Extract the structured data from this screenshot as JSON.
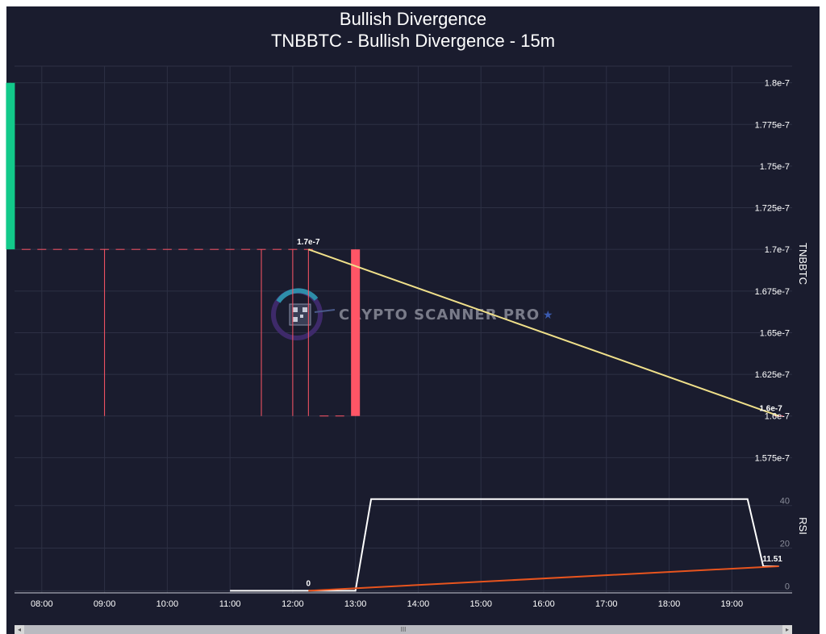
{
  "chart_data": {
    "type": "candlestick",
    "title": "Bullish Divergence",
    "subtitle": "TNBBTC - Bullish Divergence - 15m",
    "watermark": "CRYPTO SCANNER PRO",
    "x_tick_labels": [
      "08:00",
      "09:00",
      "10:00",
      "11:00",
      "12:00",
      "13:00",
      "14:00",
      "15:00",
      "16:00",
      "17:00",
      "18:00",
      "19:00"
    ],
    "x_range": [
      "07:37",
      "19:53"
    ],
    "price_panel": {
      "ylabel": "TNBBTC",
      "ylim": [
        1.565e-07,
        1.81e-07
      ],
      "y_ticks": [
        1.575e-07,
        1.6e-07,
        1.625e-07,
        1.65e-07,
        1.675e-07,
        1.7e-07,
        1.725e-07,
        1.75e-07,
        1.775e-07,
        1.8e-07
      ],
      "y_tick_labels": [
        "1.575e-7",
        "1.6e-7",
        "1.625e-7",
        "1.65e-7",
        "1.675e-7",
        "1.7e-7",
        "1.725e-7",
        "1.75e-7",
        "1.775e-7",
        "1.8e-7"
      ],
      "grid": true,
      "candles": [
        {
          "time": "07:30",
          "open": 1.7e-07,
          "high": 1.8e-07,
          "low": 1.7e-07,
          "close": 1.8e-07
        },
        {
          "time": "07:45",
          "open": 1.7e-07,
          "high": 1.7e-07,
          "low": 1.7e-07,
          "close": 1.7e-07
        },
        {
          "time": "08:00",
          "open": 1.7e-07,
          "high": 1.7e-07,
          "low": 1.7e-07,
          "close": 1.7e-07
        },
        {
          "time": "08:15",
          "open": 1.7e-07,
          "high": 1.7e-07,
          "low": 1.7e-07,
          "close": 1.7e-07
        },
        {
          "time": "08:30",
          "open": 1.7e-07,
          "high": 1.7e-07,
          "low": 1.7e-07,
          "close": 1.7e-07
        },
        {
          "time": "08:45",
          "open": 1.7e-07,
          "high": 1.7e-07,
          "low": 1.7e-07,
          "close": 1.7e-07
        },
        {
          "time": "09:00",
          "open": 1.7e-07,
          "high": 1.7e-07,
          "low": 1.6e-07,
          "close": 1.7e-07
        },
        {
          "time": "09:15",
          "open": 1.7e-07,
          "high": 1.7e-07,
          "low": 1.7e-07,
          "close": 1.7e-07
        },
        {
          "time": "09:30",
          "open": 1.7e-07,
          "high": 1.7e-07,
          "low": 1.7e-07,
          "close": 1.7e-07
        },
        {
          "time": "09:45",
          "open": 1.7e-07,
          "high": 1.7e-07,
          "low": 1.7e-07,
          "close": 1.7e-07
        },
        {
          "time": "10:00",
          "open": 1.7e-07,
          "high": 1.7e-07,
          "low": 1.7e-07,
          "close": 1.7e-07
        },
        {
          "time": "10:15",
          "open": 1.7e-07,
          "high": 1.7e-07,
          "low": 1.7e-07,
          "close": 1.7e-07
        },
        {
          "time": "10:30",
          "open": 1.7e-07,
          "high": 1.7e-07,
          "low": 1.7e-07,
          "close": 1.7e-07
        },
        {
          "time": "10:45",
          "open": 1.7e-07,
          "high": 1.7e-07,
          "low": 1.7e-07,
          "close": 1.7e-07
        },
        {
          "time": "11:00",
          "open": 1.7e-07,
          "high": 1.7e-07,
          "low": 1.7e-07,
          "close": 1.7e-07
        },
        {
          "time": "11:15",
          "open": 1.7e-07,
          "high": 1.7e-07,
          "low": 1.7e-07,
          "close": 1.7e-07
        },
        {
          "time": "11:30",
          "open": 1.7e-07,
          "high": 1.7e-07,
          "low": 1.6e-07,
          "close": 1.7e-07
        },
        {
          "time": "11:45",
          "open": 1.7e-07,
          "high": 1.7e-07,
          "low": 1.7e-07,
          "close": 1.7e-07
        },
        {
          "time": "12:00",
          "open": 1.7e-07,
          "high": 1.7e-07,
          "low": 1.6e-07,
          "close": 1.7e-07
        },
        {
          "time": "12:15",
          "open": 1.7e-07,
          "high": 1.7e-07,
          "low": 1.6e-07,
          "close": 1.7e-07
        },
        {
          "time": "12:30",
          "open": 1.6e-07,
          "high": 1.6e-07,
          "low": 1.6e-07,
          "close": 1.6e-07
        },
        {
          "time": "12:45",
          "open": 1.6e-07,
          "high": 1.6e-07,
          "low": 1.6e-07,
          "close": 1.6e-07
        },
        {
          "time": "13:00",
          "open": 1.7e-07,
          "high": 1.7e-07,
          "low": 1.6e-07,
          "close": 1.6e-07
        },
        {
          "time": "19:45",
          "open": 1.6e-07,
          "high": 1.6e-07,
          "low": 1.6e-07,
          "close": 1.6e-07
        }
      ],
      "divergence_line": {
        "from": {
          "time": "12:15",
          "value": 1.7e-07
        },
        "to": {
          "time": "19:45",
          "value": 1.6e-07
        },
        "color": "#f0e08a"
      },
      "point_labels": [
        {
          "time": "12:15",
          "value": 1.7e-07,
          "text": "1.7e-7"
        },
        {
          "time": "19:45",
          "value": 1.6e-07,
          "text": "1.6e-7"
        }
      ],
      "up_color": "#12c98a",
      "down_color": "#ff5566"
    },
    "rsi_panel": {
      "ylabel": "RSI",
      "ylim": [
        -1,
        52
      ],
      "y_ticks": [
        0,
        20,
        40
      ],
      "y_tick_labels": [
        "0",
        "20",
        "40"
      ],
      "rsi_series": {
        "name": "RSI",
        "color": "#ffffff",
        "points": [
          {
            "time": "11:00",
            "value": 0
          },
          {
            "time": "13:00",
            "value": 0
          },
          {
            "time": "13:15",
            "value": 43
          },
          {
            "time": "19:15",
            "value": 43
          },
          {
            "time": "19:30",
            "value": 11.51
          },
          {
            "time": "19:45",
            "value": 11.51
          }
        ]
      },
      "divergence_line": {
        "from": {
          "time": "12:15",
          "value": 0
        },
        "to": {
          "time": "19:45",
          "value": 11.51
        },
        "color": "#e8541e"
      },
      "point_labels": [
        {
          "time": "12:15",
          "value": 0,
          "text": "0"
        },
        {
          "time": "19:45",
          "value": 11.51,
          "text": "11.51"
        }
      ]
    }
  },
  "scrollbar": {
    "left_arrow": "◂",
    "right_arrow": "▸",
    "grip": "III"
  }
}
